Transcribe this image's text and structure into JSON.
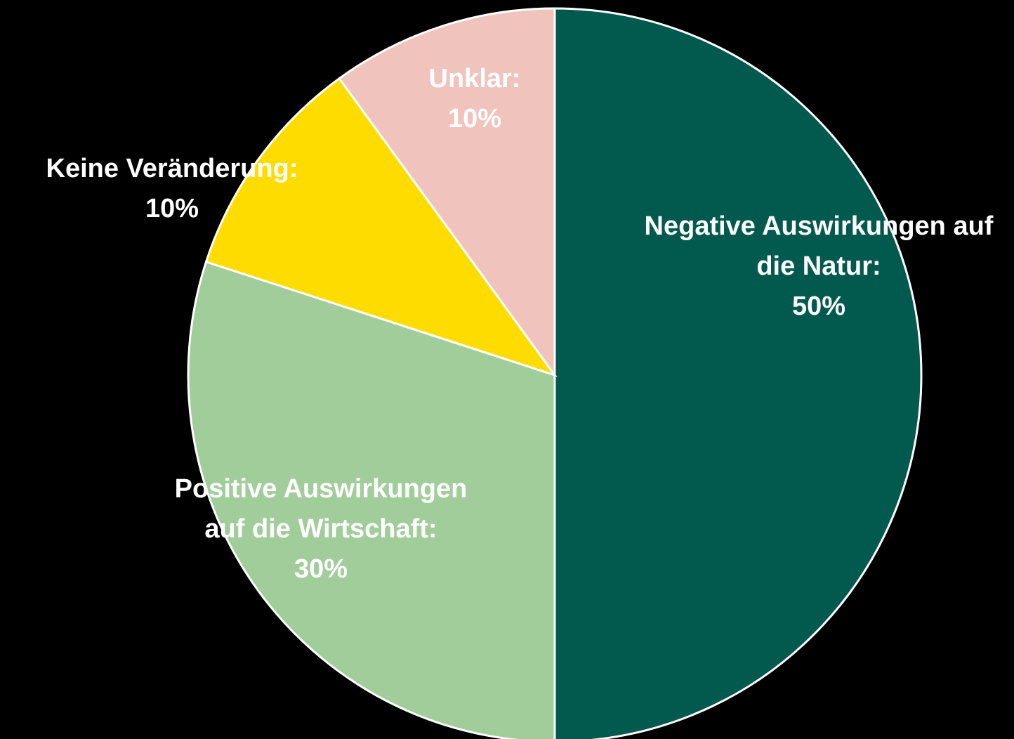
{
  "chart_data": {
    "type": "pie",
    "categories": [
      "Negative Auswirkungen auf die Natur:",
      "Positive Auswirkungen auf die Wirtschaft:",
      "Keine Veränderung:",
      "Unklar:"
    ],
    "values": [
      50,
      30,
      10,
      10
    ],
    "value_labels": [
      "50%",
      "30%",
      "10%",
      "10%"
    ],
    "colors": [
      "#02594d",
      "#a1cd9b",
      "#ffdc00",
      "#f0c3bc"
    ]
  }
}
